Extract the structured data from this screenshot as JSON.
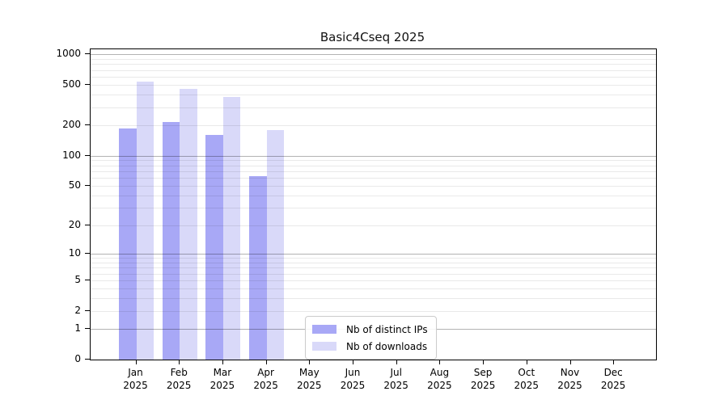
{
  "chart_data": {
    "type": "bar",
    "title": "Basic4Cseq 2025",
    "categories": [
      "Jan",
      "Feb",
      "Mar",
      "Apr",
      "May",
      "Jun",
      "Jul",
      "Aug",
      "Sep",
      "Oct",
      "Nov",
      "Dec"
    ],
    "year_label": "2025",
    "series": [
      {
        "name": "Nb of distinct IPs",
        "color": "#a8a8f6",
        "values": [
          185,
          215,
          160,
          62,
          0,
          0,
          0,
          0,
          0,
          0,
          0,
          0
        ]
      },
      {
        "name": "Nb of downloads",
        "color": "#d9d9f9",
        "values": [
          540,
          455,
          380,
          180,
          0,
          0,
          0,
          0,
          0,
          0,
          0,
          0
        ]
      }
    ],
    "yscale": "log1p",
    "ylim": [
      0,
      1122
    ],
    "yticks": [
      0,
      1,
      2,
      5,
      10,
      20,
      50,
      100,
      200,
      500,
      1000
    ],
    "grid": {
      "major_lines": [
        1,
        10,
        100,
        1000
      ],
      "minor_multiples": [
        2,
        3,
        4,
        5,
        6,
        7,
        8,
        9
      ],
      "minor_decades": [
        1,
        10,
        100
      ]
    },
    "legend": {
      "location": "lower center"
    }
  },
  "colors": {
    "background": "#ffffff",
    "series_ips": "#a8a8f6",
    "series_downloads": "#d9d9f9",
    "grid_major": "#b3b3b3",
    "grid_minor": "#e9e9e9",
    "spine": "#000000",
    "legend_border": "#cccccc"
  }
}
